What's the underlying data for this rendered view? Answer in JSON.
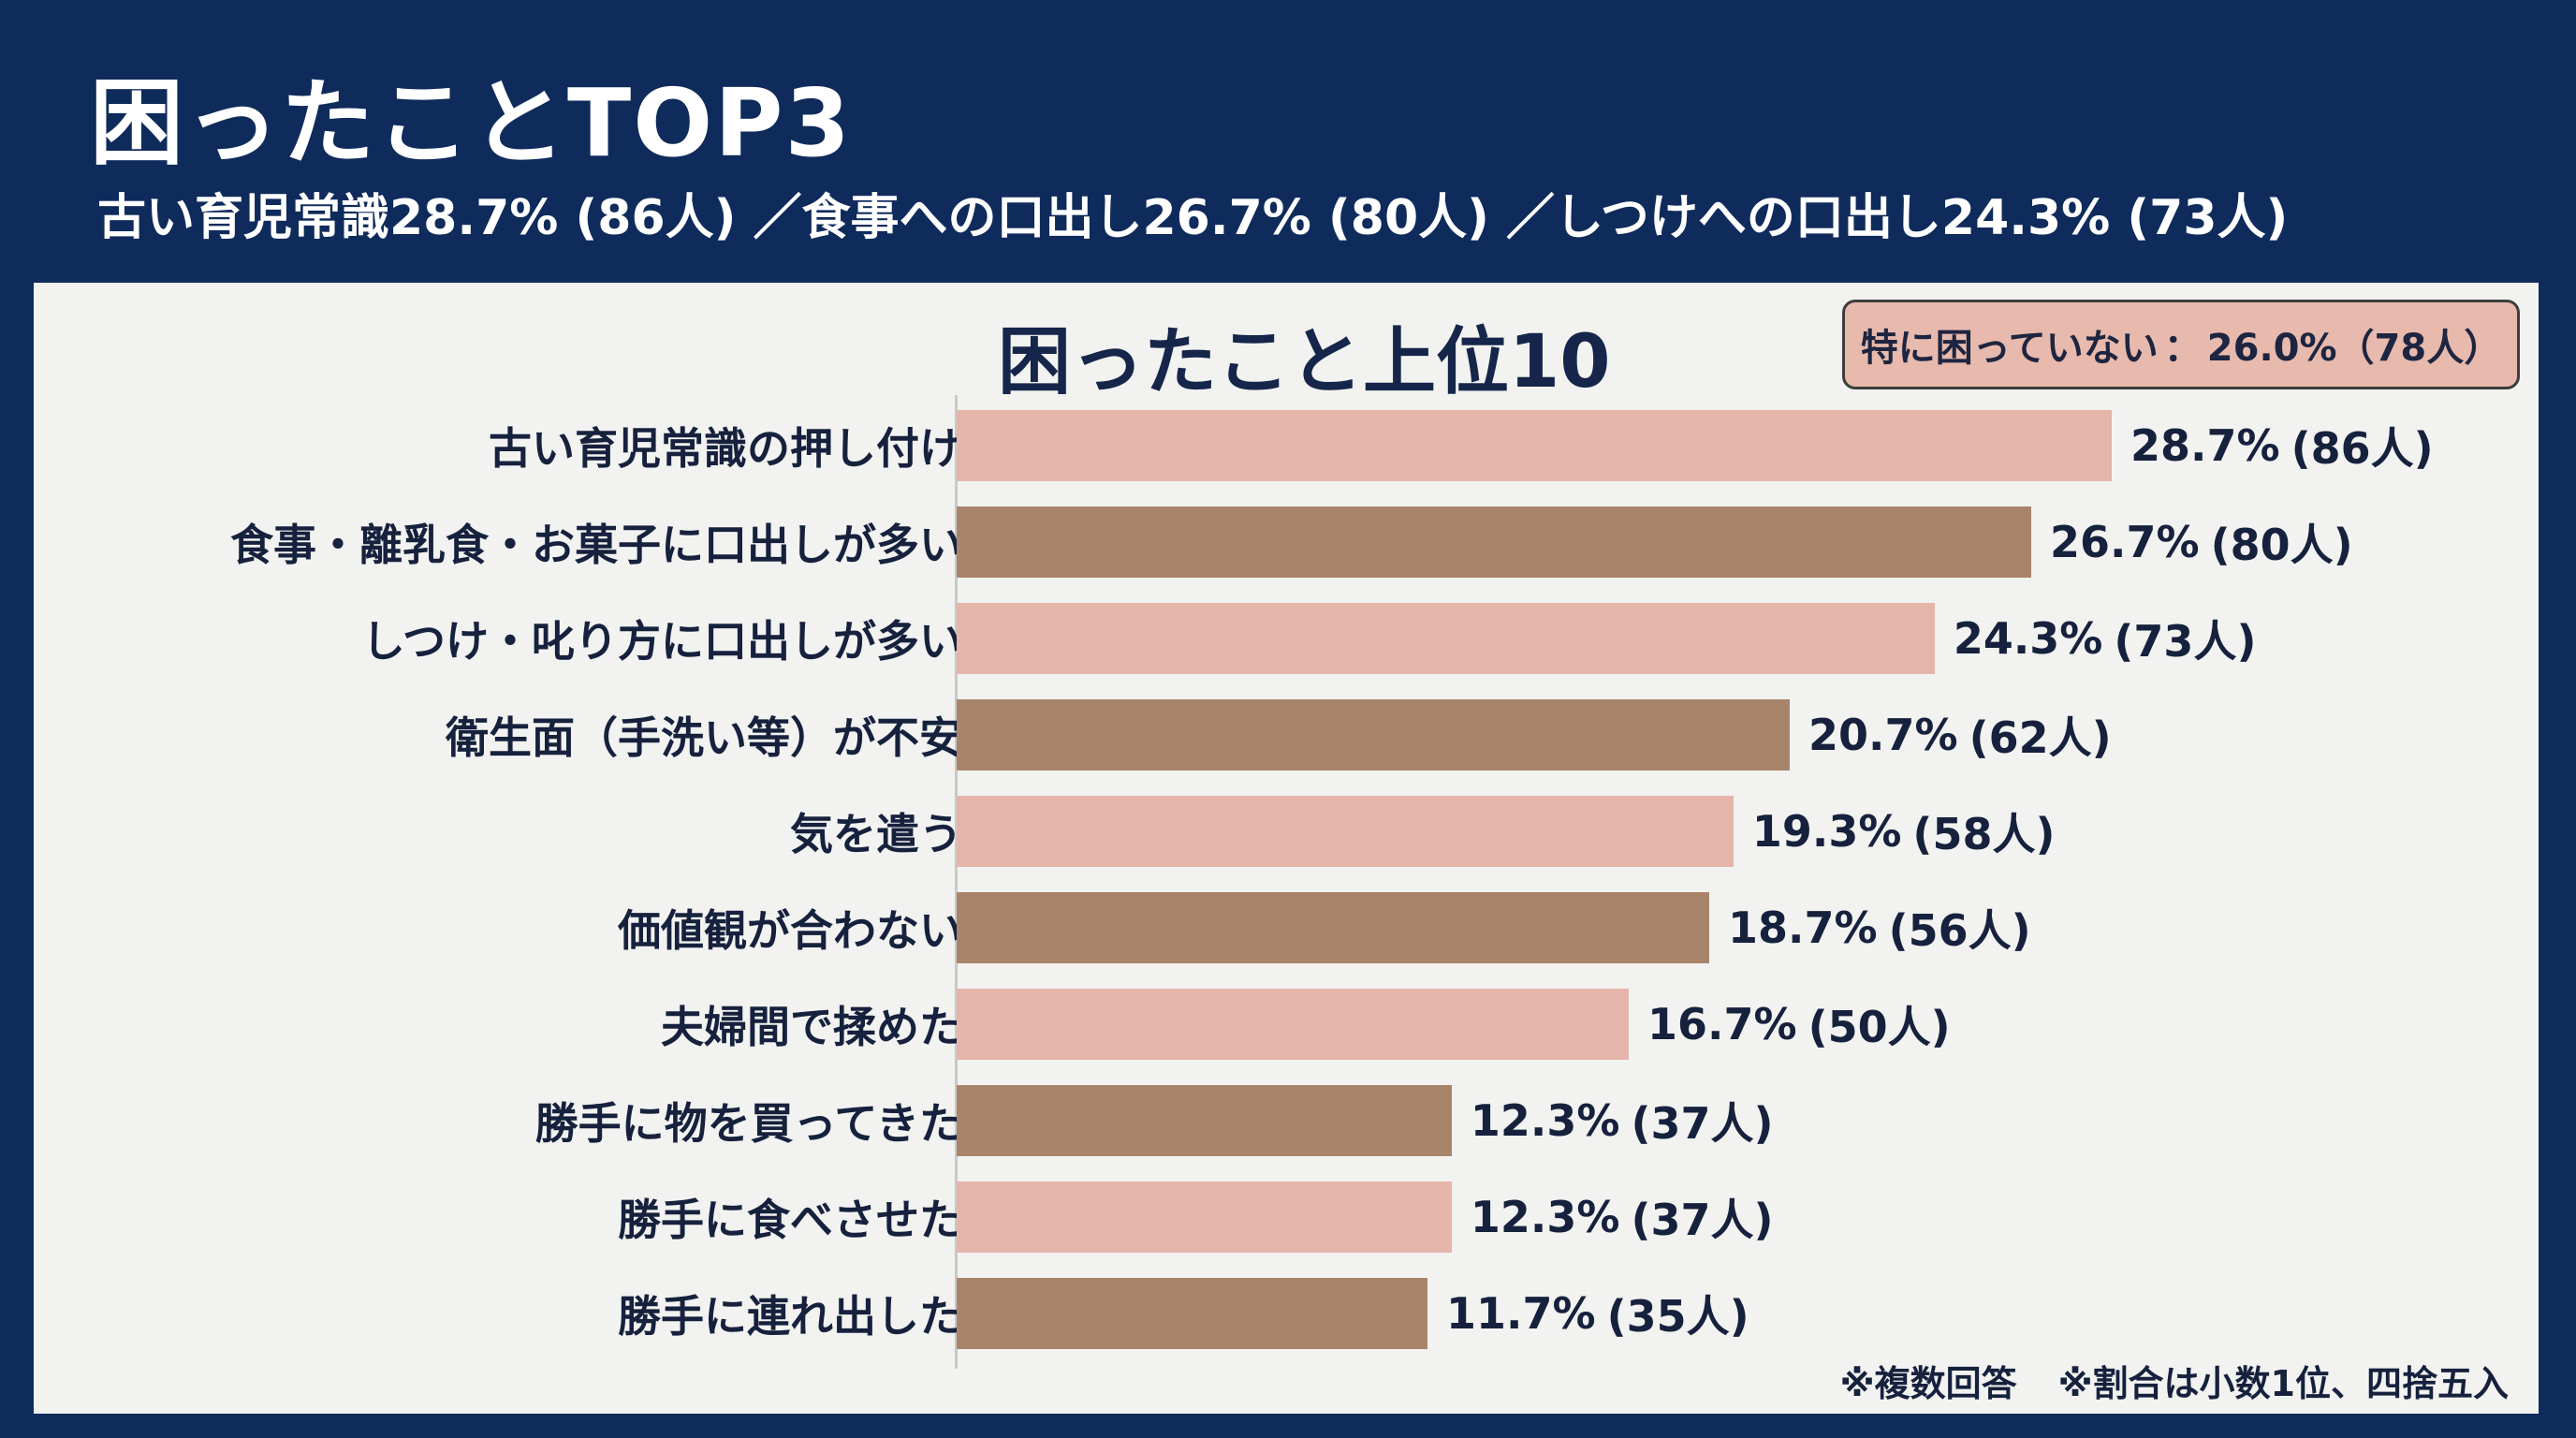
{
  "header": {
    "title": "困ったことTOP3",
    "subtitle": "古い育児常識28.7% (86人) ／食事への口出し26.7% (80人) ／しつけへの口出し24.3% (73人)"
  },
  "callout": {
    "label": "特に困っていない",
    "separator": "：",
    "value": "26.0%（78人）"
  },
  "footnotes": [
    "※複数回答",
    "※割合は小数1位、四捨五入"
  ],
  "colors": {
    "pink": "#e5b5aa",
    "brown": "#a8846a",
    "background": "#0f2b5c",
    "panel": "#f2f2f0"
  },
  "chart_data": {
    "type": "bar",
    "orientation": "horizontal",
    "title": "困ったこと上位10",
    "xlabel": "",
    "ylabel": "",
    "xlim": [
      0,
      30
    ],
    "grid": false,
    "legend": "none",
    "categories": [
      "古い育児常識の押し付け",
      "食事・離乳食・お菓子に口出しが多い",
      "しつけ・叱り方に口出しが多い",
      "衛生面（手洗い等）が不安",
      "気を遣う",
      "価値観が合わない",
      "夫婦間で揉めた",
      "勝手に物を買ってきた",
      "勝手に食べさせた",
      "勝手に連れ出した"
    ],
    "values": [
      28.7,
      26.7,
      24.3,
      20.7,
      19.3,
      18.7,
      16.7,
      12.3,
      12.3,
      11.7
    ],
    "value_labels": [
      "28.7%",
      "26.7%",
      "24.3%",
      "20.7%",
      "19.3%",
      "18.7%",
      "16.7%",
      "12.3%",
      "12.3%",
      "11.7%"
    ],
    "count_labels": [
      "(86人)",
      "(80人)",
      "(73人)",
      "(62人)",
      "(58人)",
      "(56人)",
      "(50人)",
      "(37人)",
      "(37人)",
      "(35人)"
    ],
    "bar_colors": [
      "pink",
      "brown",
      "pink",
      "brown",
      "pink",
      "brown",
      "pink",
      "brown",
      "pink",
      "brown"
    ]
  }
}
